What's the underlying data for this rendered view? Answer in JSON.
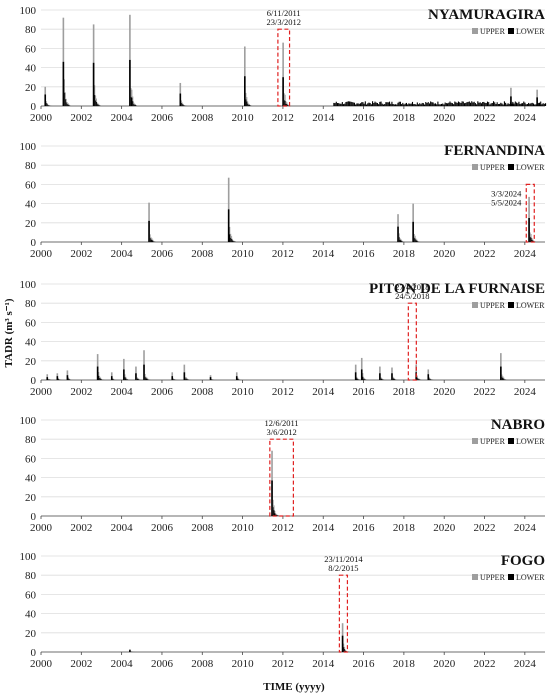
{
  "figure": {
    "ylabel": "TADR (m³ s⁻¹)",
    "xlabel": "TIME (yyyy)"
  },
  "colors": {
    "upper": "#9e9e9e",
    "lower": "#000000",
    "window": "#e02020",
    "grid": "#dddddd"
  },
  "chart_data": [
    {
      "type": "bar",
      "title": "NYAMURAGIRA",
      "legend": [
        "UPPER",
        "LOWER"
      ],
      "legend_position": "top-right",
      "xlim": [
        2000,
        2025
      ],
      "xticks": [
        2000,
        2002,
        2004,
        2006,
        2008,
        2010,
        2012,
        2014,
        2016,
        2018,
        2020,
        2022,
        2024
      ],
      "ylim": [
        0,
        100
      ],
      "yticks": [
        0,
        20,
        40,
        60,
        80,
        100
      ],
      "grid": "horizontal",
      "events": [
        {
          "t": 2000.2,
          "upper": 20,
          "lower": 12
        },
        {
          "t": 2001.1,
          "upper": 92,
          "lower": 46
        },
        {
          "t": 2002.6,
          "upper": 85,
          "lower": 45
        },
        {
          "t": 2004.4,
          "upper": 95,
          "lower": 48
        },
        {
          "t": 2006.9,
          "upper": 24,
          "lower": 13
        },
        {
          "t": 2010.1,
          "upper": 62,
          "lower": 31
        },
        {
          "t": 2012.0,
          "upper": 66,
          "lower": 30
        },
        {
          "t": 2023.3,
          "upper": 19,
          "lower": 10
        },
        {
          "t": 2024.6,
          "upper": 17,
          "lower": 9
        }
      ],
      "window": {
        "start": 2011.85,
        "end": 2012.23,
        "top": 80,
        "labels": [
          "6/11/2011",
          "23/3/2012"
        ]
      }
    },
    {
      "type": "bar",
      "title": "FERNANDINA",
      "legend": [
        "UPPER",
        "LOWER"
      ],
      "legend_position": "top-right",
      "xlim": [
        2000,
        2025
      ],
      "xticks": [
        2000,
        2002,
        2004,
        2006,
        2008,
        2010,
        2012,
        2014,
        2016,
        2018,
        2020,
        2022,
        2024
      ],
      "ylim": [
        0,
        100
      ],
      "yticks": [
        0,
        20,
        40,
        60,
        80,
        100
      ],
      "grid": "horizontal",
      "events": [
        {
          "t": 2005.35,
          "upper": 41,
          "lower": 22
        },
        {
          "t": 2009.3,
          "upper": 67,
          "lower": 34
        },
        {
          "t": 2017.7,
          "upper": 29,
          "lower": 16
        },
        {
          "t": 2018.45,
          "upper": 40,
          "lower": 21
        },
        {
          "t": 2024.2,
          "upper": 47,
          "lower": 25
        }
      ],
      "window": {
        "start": 2024.17,
        "end": 2024.34,
        "top": 60,
        "labels": [
          "3/3/2024",
          "5/5/2024"
        ]
      }
    },
    {
      "type": "bar",
      "title": "PITON DE LA FURNAISE",
      "legend": [
        "UPPER",
        "LOWER"
      ],
      "legend_position": "top-right",
      "xlim": [
        2000,
        2025
      ],
      "xticks": [
        2000,
        2002,
        2004,
        2006,
        2008,
        2010,
        2012,
        2014,
        2016,
        2018,
        2020,
        2022,
        2024
      ],
      "ylim": [
        0,
        100
      ],
      "yticks": [
        0,
        20,
        40,
        60,
        80,
        100
      ],
      "grid": "horizontal",
      "events": [
        {
          "t": 2000.3,
          "upper": 6,
          "lower": 3
        },
        {
          "t": 2000.8,
          "upper": 7,
          "lower": 4
        },
        {
          "t": 2001.3,
          "upper": 10,
          "lower": 5
        },
        {
          "t": 2002.8,
          "upper": 27,
          "lower": 14
        },
        {
          "t": 2003.5,
          "upper": 8,
          "lower": 4
        },
        {
          "t": 2004.1,
          "upper": 22,
          "lower": 11
        },
        {
          "t": 2004.7,
          "upper": 14,
          "lower": 7
        },
        {
          "t": 2005.1,
          "upper": 31,
          "lower": 16
        },
        {
          "t": 2006.5,
          "upper": 8,
          "lower": 4
        },
        {
          "t": 2007.1,
          "upper": 16,
          "lower": 8
        },
        {
          "t": 2008.4,
          "upper": 5,
          "lower": 3
        },
        {
          "t": 2009.7,
          "upper": 8,
          "lower": 4
        },
        {
          "t": 2015.6,
          "upper": 16,
          "lower": 8
        },
        {
          "t": 2015.9,
          "upper": 23,
          "lower": 11
        },
        {
          "t": 2016.8,
          "upper": 14,
          "lower": 7
        },
        {
          "t": 2017.4,
          "upper": 13,
          "lower": 7
        },
        {
          "t": 2018.6,
          "upper": 16,
          "lower": 8
        },
        {
          "t": 2019.2,
          "upper": 11,
          "lower": 6
        },
        {
          "t": 2022.8,
          "upper": 28,
          "lower": 14
        }
      ],
      "window": {
        "start": 2018.32,
        "end": 2018.4,
        "top": 80,
        "labels": [
          "27/4/2018",
          "24/5/2018"
        ]
      }
    },
    {
      "type": "bar",
      "title": "NABRO",
      "legend": [
        "UPPER",
        "LOWER"
      ],
      "legend_position": "top-right",
      "xlim": [
        2000,
        2025
      ],
      "xticks": [
        2000,
        2002,
        2004,
        2006,
        2008,
        2010,
        2012,
        2014,
        2016,
        2018,
        2020,
        2022,
        2024
      ],
      "ylim": [
        0,
        100
      ],
      "yticks": [
        0,
        20,
        40,
        60,
        80,
        100
      ],
      "grid": "horizontal",
      "events": [
        {
          "t": 2011.45,
          "upper": 68,
          "lower": 37
        }
      ],
      "window": {
        "start": 2011.45,
        "end": 2012.42,
        "top": 80,
        "labels": [
          "12/6/2011",
          "3/6/2012"
        ]
      }
    },
    {
      "type": "bar",
      "title": "FOGO",
      "legend": [
        "UPPER",
        "LOWER"
      ],
      "legend_position": "top-right",
      "xlim": [
        2000,
        2025
      ],
      "xticks": [
        2000,
        2002,
        2004,
        2006,
        2008,
        2010,
        2012,
        2014,
        2016,
        2018,
        2020,
        2022,
        2024
      ],
      "ylim": [
        0,
        100
      ],
      "yticks": [
        0,
        20,
        40,
        60,
        80,
        100
      ],
      "grid": "horizontal",
      "events": [
        {
          "t": 2004.4,
          "upper": 3,
          "lower": 2
        },
        {
          "t": 2014.95,
          "upper": 30,
          "lower": 17
        }
      ],
      "window": {
        "start": 2014.9,
        "end": 2015.1,
        "top": 80,
        "labels": [
          "23/11/2014",
          "8/2/2015"
        ]
      }
    }
  ]
}
